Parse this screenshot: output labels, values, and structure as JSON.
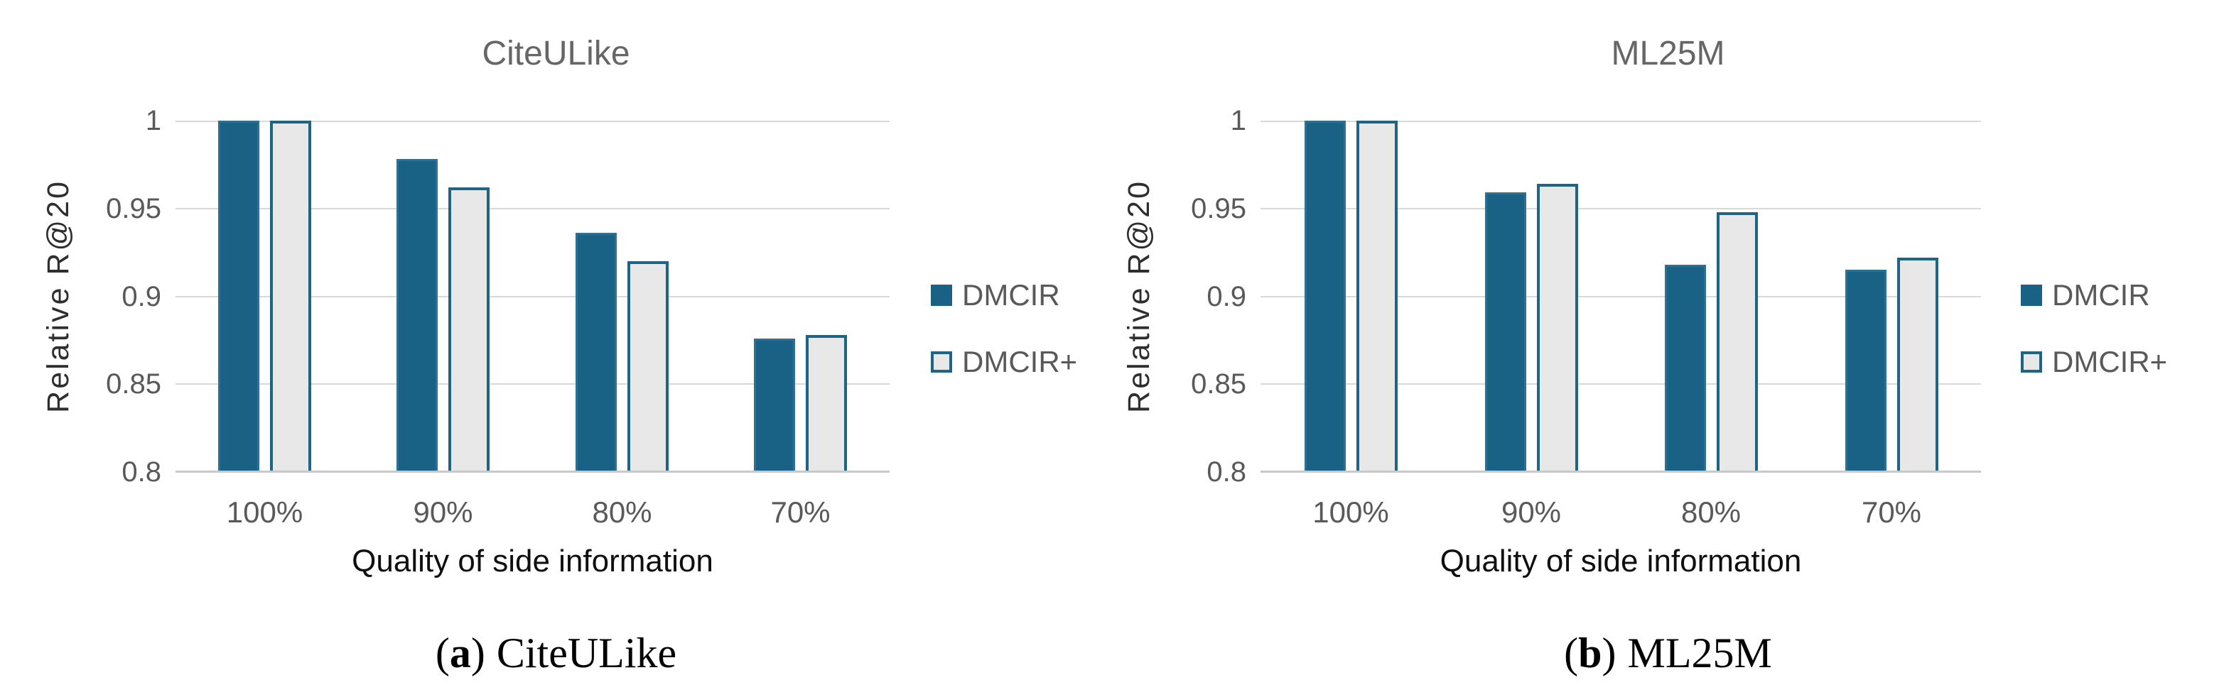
{
  "chart_data": [
    {
      "type": "bar",
      "title": "CiteULike",
      "xlabel": "Quality of side information",
      "ylabel": "Relative R@20",
      "categories": [
        "100%",
        "90%",
        "80%",
        "70%"
      ],
      "series": [
        {
          "name": "DMCIR",
          "values": [
            1.0,
            0.978,
            0.936,
            0.876
          ]
        },
        {
          "name": "DMCIR+",
          "values": [
            1.0,
            0.962,
            0.92,
            0.878
          ]
        }
      ],
      "ylim": [
        0.8,
        1.0
      ],
      "y_tick_labels": [
        "1",
        "0.95",
        "0.9",
        "0.85",
        "0.8"
      ],
      "grid": "horizontal",
      "legend_position": "right",
      "caption": {
        "open": "(",
        "marker": "a",
        "close": ")",
        "label": "CiteULike"
      }
    },
    {
      "type": "bar",
      "title": "ML25M",
      "xlabel": "Quality of side information",
      "ylabel": "Relative R@20",
      "categories": [
        "100%",
        "90%",
        "80%",
        "70%"
      ],
      "series": [
        {
          "name": "DMCIR",
          "values": [
            1.0,
            0.959,
            0.918,
            0.915
          ]
        },
        {
          "name": "DMCIR+",
          "values": [
            1.0,
            0.964,
            0.948,
            0.922
          ]
        }
      ],
      "ylim": [
        0.8,
        1.0
      ],
      "y_tick_labels": [
        "1",
        "0.95",
        "0.9",
        "0.85",
        "0.8"
      ],
      "grid": "horizontal",
      "legend_position": "right",
      "caption": {
        "open": "(",
        "marker": "b",
        "close": ")",
        "label": "ML25M"
      }
    }
  ],
  "colors": {
    "dmcir_fill": "#1A6186",
    "dmcir_border": "#2C7093",
    "dmcir_plus_fill": "#E8E8E8",
    "dmcir_plus_border": "#1E6486",
    "gridline": "#D9D9D9",
    "baseline": "#C9C9C9",
    "tick_text": "#595959",
    "title_text": "#666666",
    "ylabel_text": "#2E2E2E",
    "xlabel_text": "#0F0F0F",
    "legend_text": "#595959",
    "caption_text": "#000000"
  }
}
